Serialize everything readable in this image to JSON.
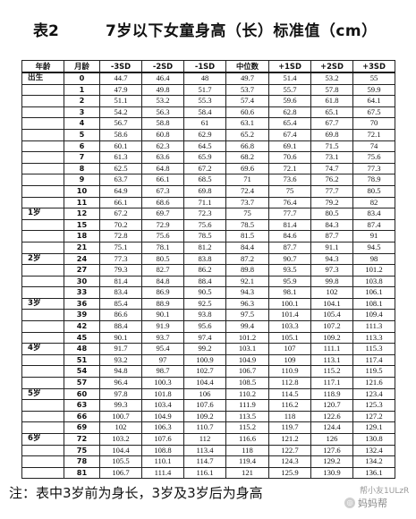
{
  "title": {
    "label": "表2",
    "text": "7岁以下女童身高（长）标准值（cm）"
  },
  "table": {
    "headers": [
      "年龄",
      "月龄",
      "-3SD",
      "-2SD",
      "-1SD",
      "中位数",
      "+1SD",
      "+2SD",
      "+3SD"
    ],
    "rows": [
      {
        "age": "出生",
        "month": "0",
        "values": [
          "44.7",
          "46.4",
          "48",
          "49.7",
          "51.4",
          "53.2",
          "55"
        ]
      },
      {
        "age": "",
        "month": "1",
        "values": [
          "47.9",
          "49.8",
          "51.7",
          "53.7",
          "55.7",
          "57.8",
          "59.9"
        ]
      },
      {
        "age": "",
        "month": "2",
        "values": [
          "51.1",
          "53.2",
          "55.3",
          "57.4",
          "59.6",
          "61.8",
          "64.1"
        ]
      },
      {
        "age": "",
        "month": "3",
        "values": [
          "54.2",
          "56.3",
          "58.4",
          "60.6",
          "62.8",
          "65.1",
          "67.5"
        ]
      },
      {
        "age": "",
        "month": "4",
        "values": [
          "56.7",
          "58.8",
          "61",
          "63.1",
          "65.4",
          "67.7",
          "70"
        ]
      },
      {
        "age": "",
        "month": "5",
        "values": [
          "58.6",
          "60.8",
          "62.9",
          "65.2",
          "67.4",
          "69.8",
          "72.1"
        ]
      },
      {
        "age": "",
        "month": "6",
        "values": [
          "60.1",
          "62.3",
          "64.5",
          "66.8",
          "69.1",
          "71.5",
          "74"
        ]
      },
      {
        "age": "",
        "month": "7",
        "values": [
          "61.3",
          "63.6",
          "65.9",
          "68.2",
          "70.6",
          "73.1",
          "75.6"
        ]
      },
      {
        "age": "",
        "month": "8",
        "values": [
          "62.5",
          "64.8",
          "67.2",
          "69.6",
          "72.1",
          "74.7",
          "77.3"
        ]
      },
      {
        "age": "",
        "month": "9",
        "values": [
          "63.7",
          "66.1",
          "68.5",
          "71",
          "73.6",
          "76.2",
          "78.9"
        ]
      },
      {
        "age": "",
        "month": "10",
        "values": [
          "64.9",
          "67.3",
          "69.8",
          "72.4",
          "75",
          "77.7",
          "80.5"
        ]
      },
      {
        "age": "",
        "month": "11",
        "values": [
          "66.1",
          "68.6",
          "71.1",
          "73.7",
          "76.4",
          "79.2",
          "82"
        ]
      },
      {
        "age": "1岁",
        "month": "12",
        "values": [
          "67.2",
          "69.7",
          "72.3",
          "75",
          "77.7",
          "80.5",
          "83.4"
        ]
      },
      {
        "age": "",
        "month": "15",
        "values": [
          "70.2",
          "72.9",
          "75.6",
          "78.5",
          "81.4",
          "84.3",
          "87.4"
        ]
      },
      {
        "age": "",
        "month": "18",
        "values": [
          "72.8",
          "75.6",
          "78.5",
          "81.5",
          "84.6",
          "87.7",
          "91"
        ]
      },
      {
        "age": "",
        "month": "21",
        "values": [
          "75.1",
          "78.1",
          "81.2",
          "84.4",
          "87.7",
          "91.1",
          "94.5"
        ]
      },
      {
        "age": "2岁",
        "month": "24",
        "values": [
          "77.3",
          "80.5",
          "83.8",
          "87.2",
          "90.7",
          "94.3",
          "98"
        ]
      },
      {
        "age": "",
        "month": "27",
        "values": [
          "79.3",
          "82.7",
          "86.2",
          "89.8",
          "93.5",
          "97.3",
          "101.2"
        ]
      },
      {
        "age": "",
        "month": "30",
        "values": [
          "81.4",
          "84.8",
          "88.4",
          "92.1",
          "95.9",
          "99.8",
          "103.8"
        ]
      },
      {
        "age": "",
        "month": "33",
        "values": [
          "83.4",
          "86.9",
          "90.5",
          "94.3",
          "98.1",
          "102",
          "106.1"
        ]
      },
      {
        "age": "3岁",
        "month": "36",
        "values": [
          "85.4",
          "88.9",
          "92.5",
          "96.3",
          "100.1",
          "104.1",
          "108.1"
        ]
      },
      {
        "age": "",
        "month": "39",
        "values": [
          "86.6",
          "90.1",
          "93.8",
          "97.5",
          "101.4",
          "105.4",
          "109.4"
        ]
      },
      {
        "age": "",
        "month": "42",
        "values": [
          "88.4",
          "91.9",
          "95.6",
          "99.4",
          "103.3",
          "107.2",
          "111.3"
        ]
      },
      {
        "age": "",
        "month": "45",
        "values": [
          "90.1",
          "93.7",
          "97.4",
          "101.2",
          "105.1",
          "109.2",
          "113.3"
        ]
      },
      {
        "age": "4岁",
        "month": "48",
        "values": [
          "91.7",
          "95.4",
          "99.2",
          "103.1",
          "107",
          "111.1",
          "115.3"
        ]
      },
      {
        "age": "",
        "month": "51",
        "values": [
          "93.2",
          "97",
          "100.9",
          "104.9",
          "109",
          "113.1",
          "117.4"
        ]
      },
      {
        "age": "",
        "month": "54",
        "values": [
          "94.8",
          "98.7",
          "102.7",
          "106.7",
          "110.9",
          "115.2",
          "119.5"
        ]
      },
      {
        "age": "",
        "month": "57",
        "values": [
          "96.4",
          "100.3",
          "104.4",
          "108.5",
          "112.8",
          "117.1",
          "121.6"
        ]
      },
      {
        "age": "5岁",
        "month": "60",
        "values": [
          "97.8",
          "101.8",
          "106",
          "110.2",
          "114.5",
          "118.9",
          "123.4"
        ]
      },
      {
        "age": "",
        "month": "63",
        "values": [
          "99.3",
          "103.4",
          "107.6",
          "111.9",
          "116.2",
          "120.7",
          "125.3"
        ]
      },
      {
        "age": "",
        "month": "66",
        "values": [
          "100.7",
          "104.9",
          "109.2",
          "113.5",
          "118",
          "122.6",
          "127.2"
        ]
      },
      {
        "age": "",
        "month": "69",
        "values": [
          "102",
          "106.3",
          "110.7",
          "115.2",
          "119.7",
          "124.4",
          "129.1"
        ]
      },
      {
        "age": "6岁",
        "month": "72",
        "values": [
          "103.2",
          "107.6",
          "112",
          "116.6",
          "121.2",
          "126",
          "130.8"
        ]
      },
      {
        "age": "",
        "month": "75",
        "values": [
          "104.4",
          "108.8",
          "113.4",
          "118",
          "122.7",
          "127.6",
          "132.4"
        ]
      },
      {
        "age": "",
        "month": "78",
        "values": [
          "105.5",
          "110.1",
          "114.7",
          "119.4",
          "124.3",
          "129.2",
          "134.2"
        ]
      },
      {
        "age": "",
        "month": "81",
        "values": [
          "106.7",
          "111.4",
          "116.1",
          "121",
          "125.9",
          "130.9",
          "136.1"
        ]
      }
    ]
  },
  "note": "注：表中3岁前为身长，3岁及3岁后为身高",
  "watermark": {
    "line1": "帮小友1ULzR",
    "line2": "妈妈帮"
  }
}
